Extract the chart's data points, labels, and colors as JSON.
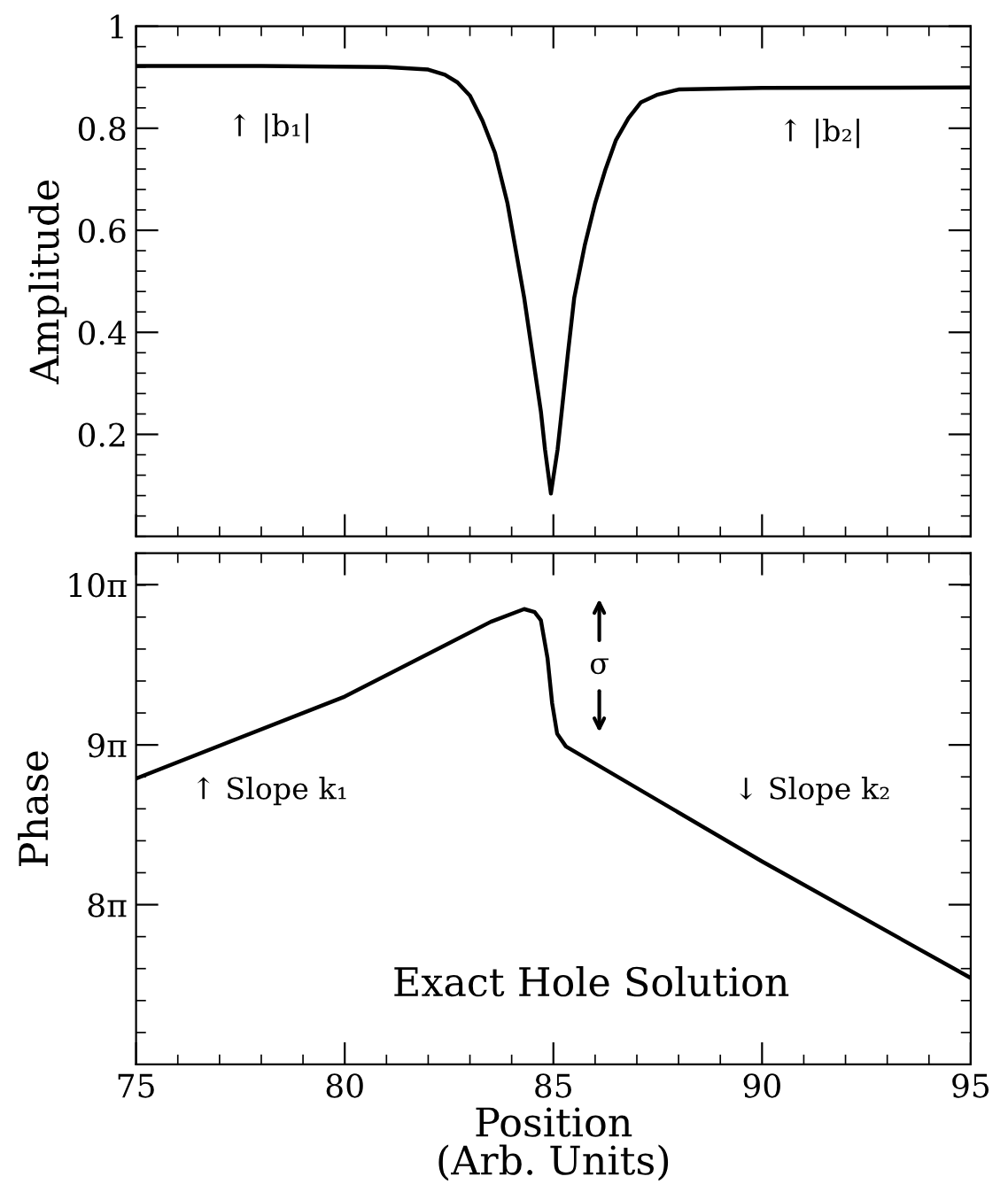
{
  "chart_data": [
    {
      "type": "line",
      "ylabel": "Amplitude",
      "x": [
        75,
        78,
        81,
        82.0,
        82.4,
        82.7,
        83.0,
        83.3,
        83.6,
        83.9,
        84.3,
        84.7,
        84.8,
        84.94,
        85.1,
        85.2,
        85.35,
        85.5,
        85.75,
        86.0,
        86.25,
        86.5,
        86.8,
        87.1,
        87.5,
        88.0,
        90,
        95
      ],
      "series": [
        {
          "color": "#000000",
          "values": [
            0.922,
            0.922,
            0.92,
            0.915,
            0.905,
            0.89,
            0.864,
            0.815,
            0.752,
            0.653,
            0.468,
            0.245,
            0.17,
            0.084,
            0.17,
            0.245,
            0.36,
            0.468,
            0.57,
            0.653,
            0.72,
            0.777,
            0.82,
            0.851,
            0.866,
            0.876,
            0.879,
            0.88
          ]
        }
      ],
      "xlim": [
        75,
        95
      ],
      "xticks": [
        75,
        80,
        85,
        90,
        95
      ],
      "ylim": [
        0,
        1
      ],
      "yticks": [
        0.2,
        0.4,
        0.6,
        0.8,
        1
      ],
      "tick_labels": "y",
      "grid": false,
      "legend": false,
      "annotations": [
        "↑ |b₁|",
        "↑ |b₂|"
      ]
    },
    {
      "type": "line",
      "ylabel": "Phase",
      "xlabel": "Position\n(Arb. Units)",
      "x": [
        75,
        80,
        83.5,
        84.3,
        84.55,
        84.7,
        84.86,
        84.97,
        85.09,
        85.3,
        90,
        95
      ],
      "series": [
        {
          "color": "#000000",
          "values": [
            27.61,
            29.22,
            30.69,
            30.94,
            30.88,
            30.72,
            29.97,
            29.09,
            28.49,
            28.24,
            25.98,
            23.69
          ]
        }
      ],
      "xlim": [
        75,
        95
      ],
      "xticks": [
        75,
        80,
        85,
        90,
        95
      ],
      "ylim": [
        21.99,
        32.04
      ],
      "yticks": [
        {
          "value": 25.13,
          "label": "8π"
        },
        {
          "value": 28.27,
          "label": "9π"
        },
        {
          "value": 31.42,
          "label": "10π"
        }
      ],
      "grid": false,
      "legend": false,
      "annotations": [
        "↑ Slope k₁",
        "↓ Slope k₂",
        "σ",
        "Exact Hole Solution"
      ]
    }
  ]
}
